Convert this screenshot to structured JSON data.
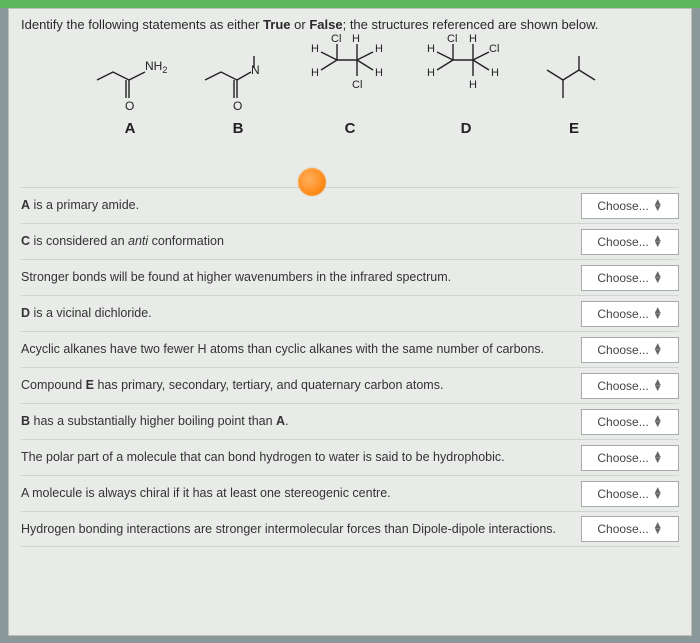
{
  "prompt_prefix": "Identify the following statements as either ",
  "prompt_true": "True",
  "prompt_mid": " or ",
  "prompt_false": "False",
  "prompt_suffix": "; the structures referenced are shown below.",
  "structures": {
    "A": {
      "label": "A"
    },
    "B": {
      "label": "B"
    },
    "C": {
      "label": "C"
    },
    "D": {
      "label": "D"
    },
    "E": {
      "label": "E"
    }
  },
  "chem_labels": {
    "NH2": "NH",
    "NH2_sub": "2",
    "O": "O",
    "N": "N",
    "Cl": "Cl",
    "H": "H"
  },
  "choose_label": "Choose...",
  "questions": [
    {
      "text_html": "<b>A</b> is a primary amide."
    },
    {
      "text_html": "<b>C</b> is considered an <i>anti</i> conformation"
    },
    {
      "text_html": "Stronger bonds will be found at higher wavenumbers in the infrared spectrum."
    },
    {
      "text_html": "<b>D</b> is a vicinal dichloride."
    },
    {
      "text_html": "Acyclic alkanes have two fewer H atoms than cyclic alkanes with the same number of carbons."
    },
    {
      "text_html": "Compound <b>E</b> has primary, secondary, tertiary, and quaternary carbon atoms."
    },
    {
      "text_html": "<b>B</b> has a substantially higher boiling point than <b>A</b>."
    },
    {
      "text_html": "The polar part of a molecule that can bond hydrogen to water is said to be hydrophobic."
    },
    {
      "text_html": "A molecule is always chiral if it has at least one stereogenic centre."
    },
    {
      "text_html": "Hydrogen bonding interactions are stronger intermolecular forces than Dipole-dipole interactions."
    }
  ],
  "colors": {
    "top_stripe": "#5cb85c",
    "panel_bg": "#e8ebe8",
    "body_bg": "#8a9899",
    "text": "#2a2a2a",
    "border": "#cfd5cf",
    "choose_bg": "#ffffff"
  }
}
